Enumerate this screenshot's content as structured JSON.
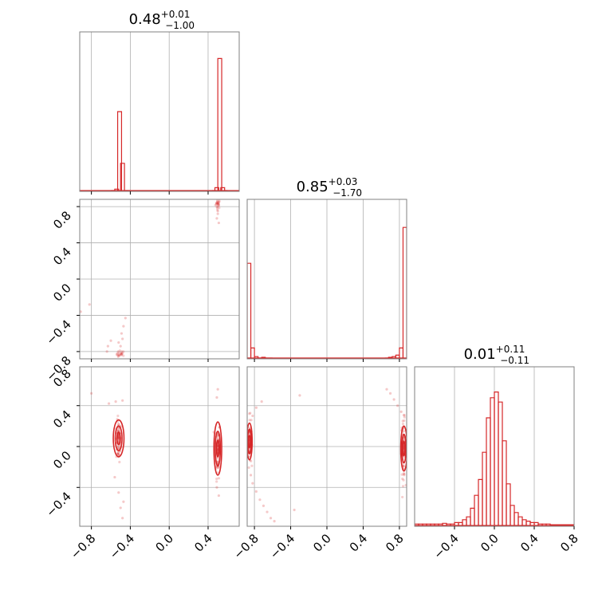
{
  "figure": {
    "titles": [
      {
        "value": "0.48",
        "sup": "+0.01",
        "sub": "−1.00"
      },
      {
        "value": "0.85",
        "sup": "+0.03",
        "sub": "−1.70"
      },
      {
        "value": "0.01",
        "sup": "+0.11",
        "sub": "−0.11"
      }
    ],
    "colors": {
      "main": "#d62728",
      "grid": "#b0b0b0",
      "frame": "#808080"
    }
  },
  "chart_data": [
    {
      "type": "histogram",
      "panel": "param-1-marginal",
      "grid": true,
      "xlim": [
        -0.92,
        0.72
      ],
      "x": [
        -0.6,
        -0.56,
        -0.53,
        -0.5,
        -0.47,
        -0.44,
        0.44,
        0.47,
        0.5,
        0.53,
        0.56
      ],
      "values": [
        0.0,
        0.01,
        0.55,
        0.19,
        0.0,
        0.0,
        0.0,
        0.02,
        0.92,
        0.02,
        0.0
      ]
    },
    {
      "type": "histogram",
      "panel": "param-2-marginal",
      "grid": true,
      "xlim": [
        -0.88,
        0.88
      ],
      "x": [
        -0.88,
        -0.84,
        -0.8,
        -0.76,
        -0.72,
        -0.68,
        -0.64,
        0.64,
        0.68,
        0.72,
        0.76,
        0.8,
        0.84
      ],
      "values": [
        0.66,
        0.07,
        0.01,
        0.0,
        0.005,
        0.0,
        0.0,
        0.0,
        0.005,
        0.01,
        0.02,
        0.07,
        0.91
      ]
    },
    {
      "type": "histogram",
      "panel": "param-3-marginal",
      "grid": true,
      "xlim": [
        -0.8,
        0.8
      ],
      "x": [
        -0.8,
        -0.76,
        -0.72,
        -0.68,
        -0.64,
        -0.6,
        -0.56,
        -0.52,
        -0.48,
        -0.44,
        -0.4,
        -0.36,
        -0.32,
        -0.28,
        -0.24,
        -0.2,
        -0.16,
        -0.12,
        -0.08,
        -0.04,
        0.0,
        0.04,
        0.08,
        0.12,
        0.16,
        0.2,
        0.24,
        0.28,
        0.32,
        0.36,
        0.4,
        0.44,
        0.48,
        0.52,
        0.56,
        0.6,
        0.64,
        0.68,
        0.72,
        0.76
      ],
      "values": [
        0.01,
        0.01,
        0.01,
        0.01,
        0.01,
        0.01,
        0.01,
        0.015,
        0.01,
        0.01,
        0.02,
        0.02,
        0.04,
        0.06,
        0.12,
        0.21,
        0.32,
        0.51,
        0.75,
        0.89,
        0.93,
        0.86,
        0.59,
        0.29,
        0.14,
        0.09,
        0.06,
        0.04,
        0.03,
        0.02,
        0.02,
        0.01,
        0.01,
        0.01,
        0.005,
        0.005,
        0.005,
        0.005,
        0.005,
        0.005
      ]
    },
    {
      "type": "scatter",
      "panel": "param-1-vs-param-2",
      "grid": true,
      "xlim": [
        -0.92,
        0.72
      ],
      "ylim": [
        -0.88,
        0.88
      ],
      "clusters": [
        {
          "x": 0.5,
          "y": 0.83,
          "sx": 0.012,
          "sy": 0.025,
          "n": 22
        },
        {
          "x": -0.5,
          "y": -0.83,
          "sx": 0.02,
          "sy": 0.02,
          "n": 20
        }
      ],
      "points": [
        [
          0.5,
          0.72
        ],
        [
          0.49,
          0.67
        ],
        [
          0.51,
          0.62
        ],
        [
          0.5,
          0.75
        ],
        [
          -0.47,
          -0.52
        ],
        [
          -0.49,
          -0.6
        ],
        [
          -0.48,
          -0.66
        ],
        [
          -0.52,
          -0.7
        ],
        [
          -0.5,
          -0.74
        ],
        [
          -0.6,
          -0.68
        ],
        [
          -0.63,
          -0.74
        ],
        [
          -0.64,
          -0.8
        ],
        [
          -0.91,
          -0.36
        ],
        [
          -0.82,
          -0.28
        ],
        [
          -0.45,
          -0.43
        ]
      ]
    },
    {
      "type": "scatter",
      "panel": "param-1-vs-param-3",
      "grid": true,
      "xlim": [
        -0.92,
        0.72
      ],
      "ylim": [
        -0.78,
        0.78
      ],
      "clusters": [
        {
          "x": -0.52,
          "y": 0.05,
          "sx": 0.012,
          "sy": 0.1,
          "n": 70
        },
        {
          "x": 0.5,
          "y": -0.02,
          "sx": 0.012,
          "sy": 0.14,
          "n": 80
        }
      ],
      "points": [
        [
          -0.55,
          0.44
        ],
        [
          -0.48,
          0.45
        ],
        [
          -0.62,
          0.42
        ],
        [
          -0.52,
          -0.45
        ],
        [
          -0.5,
          -0.6
        ],
        [
          -0.48,
          -0.7
        ],
        [
          -0.47,
          -0.54
        ],
        [
          0.5,
          0.56
        ],
        [
          0.49,
          0.48
        ],
        [
          0.51,
          -0.48
        ],
        [
          0.49,
          -0.4
        ],
        [
          -0.8,
          0.52
        ],
        [
          -0.56,
          -0.3
        ]
      ]
    },
    {
      "type": "scatter",
      "panel": "param-2-vs-param-3",
      "grid": true,
      "xlim": [
        -0.88,
        0.88
      ],
      "ylim": [
        -0.78,
        0.78
      ],
      "clusters": [
        {
          "x": -0.855,
          "y": 0.05,
          "sx": 0.01,
          "sy": 0.12,
          "n": 60
        },
        {
          "x": 0.845,
          "y": -0.02,
          "sx": 0.012,
          "sy": 0.14,
          "n": 70
        }
      ],
      "points": [
        [
          -0.84,
          -0.28
        ],
        [
          -0.82,
          -0.36
        ],
        [
          -0.78,
          -0.44
        ],
        [
          -0.74,
          -0.52
        ],
        [
          -0.7,
          -0.58
        ],
        [
          -0.66,
          -0.64
        ],
        [
          -0.62,
          -0.7
        ],
        [
          -0.58,
          -0.73
        ],
        [
          -0.82,
          0.3
        ],
        [
          -0.78,
          0.38
        ],
        [
          -0.72,
          0.44
        ],
        [
          0.82,
          0.34
        ],
        [
          0.78,
          0.4
        ],
        [
          0.74,
          0.46
        ],
        [
          0.7,
          0.52
        ],
        [
          0.66,
          0.56
        ],
        [
          -0.36,
          -0.62
        ],
        [
          -0.3,
          0.5
        ]
      ]
    }
  ],
  "contours": [
    {
      "panel": "param-1-vs-param-3",
      "cx": -0.52,
      "cy": 0.08,
      "rx": [
        0.055,
        0.035,
        0.018
      ],
      "ry": [
        0.18,
        0.12,
        0.06
      ]
    },
    {
      "panel": "param-1-vs-param-3",
      "cx": 0.5,
      "cy": -0.02,
      "rx": [
        0.04,
        0.026,
        0.013
      ],
      "ry": [
        0.26,
        0.17,
        0.08
      ]
    },
    {
      "panel": "param-2-vs-param-3",
      "cx": -0.855,
      "cy": 0.05,
      "rx": [
        0.03,
        0.02,
        0.01
      ],
      "ry": [
        0.18,
        0.12,
        0.06
      ]
    },
    {
      "panel": "param-2-vs-param-3",
      "cx": 0.85,
      "cy": -0.02,
      "rx": [
        0.035,
        0.022,
        0.011
      ],
      "ry": [
        0.22,
        0.14,
        0.07
      ]
    }
  ],
  "ticks": {
    "p1_x": [
      "−0.8",
      "−0.4",
      "0.0",
      "0.4"
    ],
    "p2_x": [
      "−0.8",
      "−0.4",
      "0.0",
      "0.4",
      "0.8"
    ],
    "p3_x": [
      "−0.4",
      "0.0",
      "0.4",
      "0.8"
    ],
    "p2_y": [
      "0.8",
      "0.4",
      "0.0",
      "−0.4",
      "−0.8"
    ],
    "p3_y": [
      "0.8",
      "0.4",
      "0.0",
      "−0.4"
    ]
  }
}
